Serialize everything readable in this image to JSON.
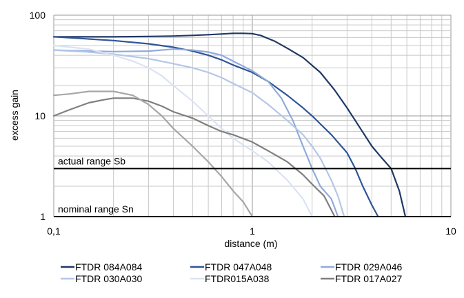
{
  "chart_data": {
    "type": "line",
    "title": "",
    "xlabel": "distance (m)",
    "ylabel": "excess gain",
    "x_scale": "log",
    "y_scale": "log",
    "xlim": [
      0.1,
      10
    ],
    "ylim": [
      1,
      100
    ],
    "x_ticks": [
      "0,1",
      "1",
      "10"
    ],
    "y_ticks": [
      "1",
      "10",
      "100"
    ],
    "grid": true,
    "legend_position": "bottom",
    "reference_lines": [
      {
        "label": "actual range Sb",
        "y": 3,
        "color": "#000000"
      },
      {
        "label": "nominal range Sn",
        "y": 1,
        "color": "#000000"
      }
    ],
    "series": [
      {
        "name": "FTDR 084A084",
        "color": "#1f3864",
        "points": [
          [
            0.1,
            61
          ],
          [
            0.2,
            61
          ],
          [
            0.3,
            61.5
          ],
          [
            0.4,
            62
          ],
          [
            0.5,
            63
          ],
          [
            0.6,
            64
          ],
          [
            0.7,
            65
          ],
          [
            0.8,
            66
          ],
          [
            0.9,
            66
          ],
          [
            1.0,
            65.5
          ],
          [
            1.1,
            63
          ],
          [
            1.3,
            55
          ],
          [
            1.5,
            47
          ],
          [
            1.8,
            38
          ],
          [
            2.2,
            27
          ],
          [
            2.6,
            18
          ],
          [
            3.0,
            12
          ],
          [
            3.5,
            7.5
          ],
          [
            4.0,
            5
          ],
          [
            4.5,
            3.8
          ],
          [
            5.0,
            3
          ],
          [
            5.5,
            1.8
          ],
          [
            5.9,
            1
          ]
        ]
      },
      {
        "name": "FTDR 047A048",
        "color": "#2f5597",
        "points": [
          [
            0.1,
            61
          ],
          [
            0.15,
            58
          ],
          [
            0.2,
            56
          ],
          [
            0.3,
            52
          ],
          [
            0.4,
            48
          ],
          [
            0.5,
            44
          ],
          [
            0.6,
            40
          ],
          [
            0.7,
            36
          ],
          [
            0.8,
            32
          ],
          [
            1.0,
            27
          ],
          [
            1.2,
            22
          ],
          [
            1.5,
            16
          ],
          [
            1.8,
            12
          ],
          [
            2.0,
            10
          ],
          [
            2.5,
            6.5
          ],
          [
            3.0,
            4.3
          ],
          [
            3.3,
            3
          ],
          [
            3.6,
            2
          ],
          [
            4.0,
            1.3
          ],
          [
            4.3,
            1
          ]
        ]
      },
      {
        "name": "FTDR 029A046",
        "color": "#8faadc",
        "points": [
          [
            0.1,
            45
          ],
          [
            0.15,
            44
          ],
          [
            0.2,
            43.5
          ],
          [
            0.3,
            44
          ],
          [
            0.4,
            46
          ],
          [
            0.5,
            45
          ],
          [
            0.6,
            43
          ],
          [
            0.7,
            40
          ],
          [
            0.8,
            35
          ],
          [
            1.0,
            28
          ],
          [
            1.2,
            22
          ],
          [
            1.4,
            15
          ],
          [
            1.6,
            9
          ],
          [
            1.8,
            5
          ],
          [
            2.0,
            3
          ],
          [
            2.2,
            2
          ],
          [
            2.5,
            1.5
          ],
          [
            2.7,
            1
          ]
        ]
      },
      {
        "name": "FTDR 030A030",
        "color": "#b4c7e7",
        "points": [
          [
            0.1,
            45
          ],
          [
            0.15,
            43
          ],
          [
            0.2,
            41
          ],
          [
            0.3,
            37
          ],
          [
            0.4,
            33
          ],
          [
            0.5,
            30
          ],
          [
            0.6,
            27
          ],
          [
            0.7,
            24
          ],
          [
            0.8,
            21
          ],
          [
            1.0,
            17
          ],
          [
            1.2,
            13
          ],
          [
            1.5,
            9
          ],
          [
            1.8,
            6.5
          ],
          [
            2.0,
            5
          ],
          [
            2.2,
            3.8
          ],
          [
            2.5,
            2.3
          ],
          [
            2.7,
            1.6
          ],
          [
            2.9,
            1
          ]
        ]
      },
      {
        "name": "FTDR015A038",
        "color": "#dae3f3",
        "points": [
          [
            0.1,
            50
          ],
          [
            0.15,
            46
          ],
          [
            0.2,
            40
          ],
          [
            0.25,
            35
          ],
          [
            0.3,
            30
          ],
          [
            0.35,
            25
          ],
          [
            0.4,
            20
          ],
          [
            0.5,
            14
          ],
          [
            0.6,
            10
          ],
          [
            0.7,
            7.5
          ],
          [
            0.8,
            6
          ],
          [
            1.0,
            4.5
          ],
          [
            1.2,
            3.5
          ],
          [
            1.5,
            2.3
          ],
          [
            1.8,
            1.5
          ],
          [
            2.0,
            1
          ]
        ]
      },
      {
        "name": "FTDR 017A027",
        "color": "#7f7f7f",
        "points": [
          [
            0.1,
            10
          ],
          [
            0.12,
            11.5
          ],
          [
            0.15,
            13.5
          ],
          [
            0.18,
            14.5
          ],
          [
            0.2,
            15
          ],
          [
            0.25,
            15
          ],
          [
            0.3,
            14
          ],
          [
            0.35,
            12.5
          ],
          [
            0.4,
            11
          ],
          [
            0.5,
            9.5
          ],
          [
            0.6,
            8
          ],
          [
            0.7,
            7
          ],
          [
            0.8,
            6.5
          ],
          [
            1.0,
            5.5
          ],
          [
            1.2,
            4.5
          ],
          [
            1.5,
            3.5
          ],
          [
            1.8,
            2.6
          ],
          [
            2.0,
            2.1
          ],
          [
            2.3,
            1.6
          ],
          [
            2.6,
            1
          ]
        ]
      },
      {
        "name": "",
        "color": "#a6a6a6",
        "points": [
          [
            0.1,
            16
          ],
          [
            0.12,
            16.5
          ],
          [
            0.15,
            17.5
          ],
          [
            0.2,
            17.5
          ],
          [
            0.25,
            16
          ],
          [
            0.3,
            13
          ],
          [
            0.35,
            10
          ],
          [
            0.4,
            7.5
          ],
          [
            0.5,
            5
          ],
          [
            0.6,
            3.5
          ],
          [
            0.7,
            2.5
          ],
          [
            0.8,
            1.8
          ],
          [
            0.9,
            1.4
          ],
          [
            1.0,
            1
          ]
        ]
      }
    ]
  }
}
